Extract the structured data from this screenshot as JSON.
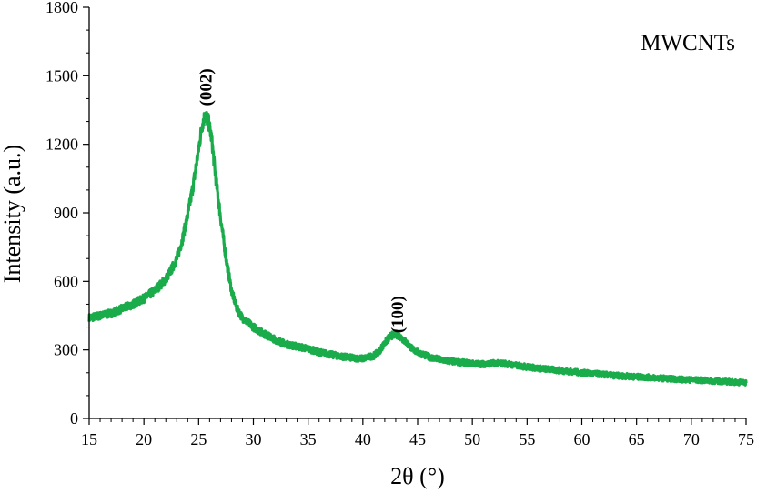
{
  "chart_data": {
    "type": "line",
    "xlabel": "2θ (°)",
    "ylabel": "Intensity (a.u.)",
    "xlim": [
      15,
      75
    ],
    "ylim": [
      0,
      1800
    ],
    "x_ticks": [
      15,
      20,
      25,
      30,
      35,
      40,
      45,
      50,
      55,
      60,
      65,
      70,
      75
    ],
    "y_ticks": [
      0,
      300,
      600,
      900,
      1200,
      1500,
      1800
    ],
    "grid": false,
    "legend": null,
    "series_color": "#1aab4b",
    "series": [
      {
        "x": [
          15,
          16,
          17,
          18,
          19,
          20,
          21,
          22,
          22.5,
          23,
          23.5,
          24,
          24.5,
          25,
          25.3,
          25.6,
          25.9,
          26.2,
          26.5,
          27,
          27.5,
          28,
          28.5,
          29,
          30,
          31,
          32,
          33,
          34,
          35,
          36,
          37,
          38,
          39,
          40,
          41,
          41.5,
          42,
          42.5,
          43,
          43.5,
          44,
          44.5,
          45,
          46,
          47,
          48,
          49,
          50,
          51,
          52,
          53,
          54,
          55,
          56,
          57,
          58,
          59,
          60,
          61,
          62,
          63,
          64,
          65,
          66,
          67,
          68,
          69,
          70,
          71,
          72,
          73,
          74,
          75
        ],
        "y": [
          440,
          450,
          460,
          480,
          500,
          525,
          560,
          610,
          650,
          700,
          780,
          890,
          1020,
          1180,
          1280,
          1330,
          1300,
          1220,
          1080,
          880,
          700,
          560,
          480,
          440,
          400,
          370,
          345,
          325,
          315,
          305,
          290,
          280,
          272,
          265,
          262,
          275,
          295,
          330,
          360,
          370,
          355,
          330,
          305,
          290,
          270,
          258,
          250,
          245,
          240,
          238,
          242,
          240,
          232,
          226,
          220,
          215,
          210,
          205,
          200,
          196,
          192,
          188,
          185,
          182,
          180,
          177,
          174,
          171,
          169,
          167,
          164,
          162,
          159,
          157
        ]
      }
    ],
    "annotations": [
      {
        "text": "(002)",
        "x": 25.6,
        "y": 1450
      },
      {
        "text": "(100)",
        "x": 43.1,
        "y": 455
      },
      {
        "text": "MWCNTs",
        "position": "top-right"
      }
    ]
  }
}
